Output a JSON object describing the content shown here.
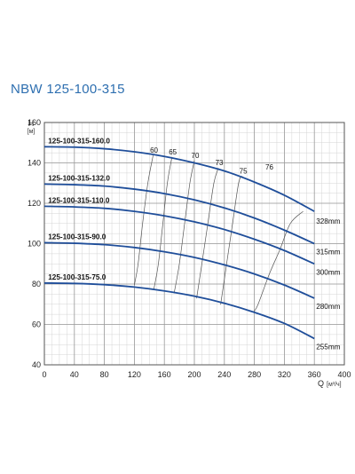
{
  "title": "NBW 125-100-315",
  "chart_data": {
    "type": "line",
    "xlabel": "Q",
    "xunit": "[м³/ч]",
    "ylabel": "H",
    "yunit": "[м]",
    "xlim": [
      0,
      400
    ],
    "ylim": [
      40,
      160
    ],
    "xticks": [
      "0",
      "40",
      "80",
      "120",
      "160",
      "200",
      "240",
      "280",
      "320",
      "360",
      "400"
    ],
    "yticks": [
      "40",
      "60",
      "80",
      "100",
      "120",
      "140",
      "160"
    ],
    "grid": true,
    "series": [
      {
        "name": "125-100-315-160.0",
        "impeller": "328mm",
        "color": "#1f4e9a",
        "points": [
          [
            0,
            148
          ],
          [
            40,
            147.8
          ],
          [
            80,
            147
          ],
          [
            120,
            145.5
          ],
          [
            160,
            143.2
          ],
          [
            200,
            140
          ],
          [
            240,
            136
          ],
          [
            280,
            130.5
          ],
          [
            320,
            124
          ],
          [
            360,
            116
          ]
        ]
      },
      {
        "name": "125-100-315-132.0",
        "impeller": "315mm",
        "color": "#1f4e9a",
        "points": [
          [
            0,
            129.5
          ],
          [
            40,
            129.2
          ],
          [
            80,
            128.5
          ],
          [
            120,
            127
          ],
          [
            160,
            124.8
          ],
          [
            200,
            121.7
          ],
          [
            240,
            117.7
          ],
          [
            280,
            112.7
          ],
          [
            320,
            106.7
          ],
          [
            360,
            100
          ]
        ]
      },
      {
        "name": "125-100-315-110.0",
        "impeller": "300mm",
        "color": "#1f4e9a",
        "points": [
          [
            0,
            118.5
          ],
          [
            40,
            118.2
          ],
          [
            80,
            117.5
          ],
          [
            120,
            116
          ],
          [
            160,
            113.8
          ],
          [
            200,
            110.8
          ],
          [
            240,
            107
          ],
          [
            280,
            102.2
          ],
          [
            320,
            96.6
          ],
          [
            360,
            90
          ]
        ]
      },
      {
        "name": "125-100-315-90.0",
        "impeller": "280mm",
        "color": "#1f4e9a",
        "points": [
          [
            0,
            100.5
          ],
          [
            40,
            100.2
          ],
          [
            80,
            99.5
          ],
          [
            120,
            98.1
          ],
          [
            160,
            96
          ],
          [
            200,
            93.2
          ],
          [
            240,
            89.5
          ],
          [
            280,
            85
          ],
          [
            320,
            79.5
          ],
          [
            360,
            73
          ]
        ]
      },
      {
        "name": "125-100-315-75.0",
        "impeller": "255mm",
        "color": "#1f4e9a",
        "points": [
          [
            0,
            80.5
          ],
          [
            40,
            80.3
          ],
          [
            80,
            79.7
          ],
          [
            120,
            78.5
          ],
          [
            160,
            76.6
          ],
          [
            200,
            74
          ],
          [
            240,
            70.5
          ],
          [
            280,
            66
          ],
          [
            320,
            60.5
          ],
          [
            360,
            53
          ]
        ]
      }
    ],
    "efficiency": [
      {
        "label": "60",
        "points": [
          [
            120,
            79.5
          ],
          [
            125,
            90
          ],
          [
            131,
            110
          ],
          [
            138,
            130
          ],
          [
            145,
            143.7
          ]
        ]
      },
      {
        "label": "65",
        "points": [
          [
            146,
            77.5
          ],
          [
            152,
            90
          ],
          [
            158,
            110
          ],
          [
            164,
            130
          ],
          [
            170,
            142.8
          ]
        ]
      },
      {
        "label": "70",
        "points": [
          [
            173,
            75.4
          ],
          [
            180,
            90
          ],
          [
            187,
            110
          ],
          [
            194,
            130
          ],
          [
            200,
            141.2
          ]
        ]
      },
      {
        "label": "73",
        "points": [
          [
            203,
            72.9
          ],
          [
            210,
            90
          ],
          [
            218,
            110
          ],
          [
            226,
            130
          ],
          [
            232,
            137.5
          ]
        ]
      },
      {
        "label": "75",
        "points": [
          [
            235,
            69.8
          ],
          [
            243,
            90
          ],
          [
            251,
            110
          ],
          [
            259,
            130
          ],
          [
            264,
            133.5
          ]
        ]
      },
      {
        "label": "76",
        "points": [
          [
            279,
            66.2
          ],
          [
            285,
            70
          ],
          [
            300,
            85
          ],
          [
            314,
            97
          ],
          [
            328,
            110
          ],
          [
            345,
            116
          ]
        ]
      }
    ],
    "right_label": "328mm"
  }
}
